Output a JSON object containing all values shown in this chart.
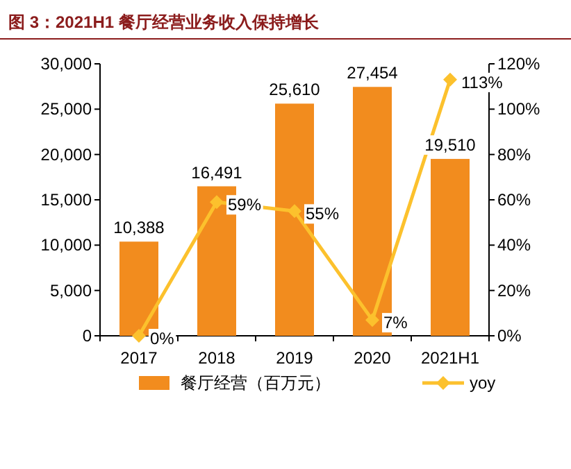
{
  "chart_data": {
    "type": "bar",
    "title": "图 3：2021H1 餐厅经营业务收入保持增长",
    "categories": [
      "2017",
      "2018",
      "2019",
      "2020",
      "2021H1"
    ],
    "series": [
      {
        "name": "餐厅经营（百万元）",
        "color": "#f28c1e",
        "values": [
          10388,
          16491,
          25610,
          27454,
          19510
        ],
        "value_labels": [
          "10,388",
          "16,491",
          "25,610",
          "27,454",
          "19,510"
        ]
      },
      {
        "name": "yoy",
        "type": "line",
        "axis": "y2",
        "color": "#fcc12d",
        "marker": "diamond",
        "values": [
          0,
          59,
          55,
          7,
          113
        ],
        "value_labels": [
          "0%",
          "59%",
          "55%",
          "7%",
          "113%"
        ]
      }
    ],
    "ylim": [
      0,
      30000
    ],
    "yticks": [
      0,
      {
        "value": 5000,
        "label": "5,000"
      },
      {
        "value": 10000,
        "label": "10,000"
      },
      {
        "value": 15000,
        "label": "15,000"
      },
      {
        "value": 20000,
        "label": "20,000"
      },
      {
        "value": 25000,
        "label": "25,000"
      },
      {
        "value": 30000,
        "label": "30,000"
      }
    ],
    "y2lim": [
      0,
      120
    ],
    "y2ticks": [
      {
        "value": 0,
        "label": "0%"
      },
      {
        "value": 20,
        "label": "20%"
      },
      {
        "value": 40,
        "label": "40%"
      },
      {
        "value": 60,
        "label": "60%"
      },
      {
        "value": 80,
        "label": "80%"
      },
      {
        "value": 100,
        "label": "100%"
      },
      {
        "value": 120,
        "label": "120%"
      }
    ],
    "grid": false,
    "legend": "bottom"
  }
}
